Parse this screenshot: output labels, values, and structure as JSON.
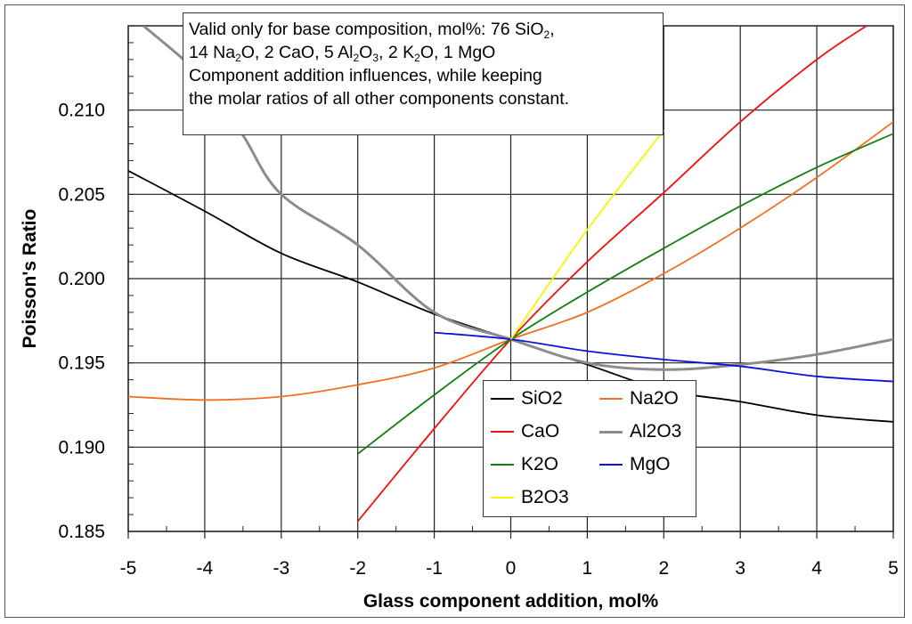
{
  "chart_data": {
    "type": "line",
    "xlabel": "Glass component addition, mol%",
    "ylabel": "Poisson's Ratio",
    "xlim": [
      -5,
      5
    ],
    "ylim": [
      0.185,
      0.215
    ],
    "xticks": [
      "-5",
      "-4",
      "-3",
      "-2",
      "-1",
      "0",
      "1",
      "2",
      "3",
      "4",
      "5"
    ],
    "yticks": [
      "0.185",
      "0.190",
      "0.195",
      "0.200",
      "0.205",
      "0.210"
    ],
    "grid": true,
    "legend_position": "bottom-center",
    "annotation": [
      [
        {
          "t": "Valid only for base composition, mol%: 76 SiO"
        },
        {
          "sub": "2"
        },
        {
          "t": ","
        }
      ],
      [
        {
          "t": "14 Na"
        },
        {
          "sub": "2"
        },
        {
          "t": "O, 2 CaO, 5 Al"
        },
        {
          "sub": "2"
        },
        {
          "t": "O"
        },
        {
          "sub": "3"
        },
        {
          "t": ", 2 K"
        },
        {
          "sub": "2"
        },
        {
          "t": "O, 1 MgO"
        }
      ],
      [
        {
          "t": "Component addition influences, while keeping"
        }
      ],
      [
        {
          "t": "the molar ratios of all other components constant."
        }
      ]
    ],
    "series": [
      {
        "name": "SiO2",
        "color": "#000000",
        "x": [
          -5,
          -4,
          -3,
          -2,
          -1,
          0,
          1,
          2,
          3,
          4,
          5
        ],
        "y": [
          0.2064,
          0.204,
          0.2015,
          0.1998,
          0.1979,
          0.1964,
          0.1949,
          0.1934,
          0.1927,
          0.1919,
          0.1915
        ]
      },
      {
        "name": "Na2O",
        "color": "#f07020",
        "x": [
          -5,
          -4,
          -3,
          -2,
          -1,
          0,
          1,
          2,
          3,
          4,
          5
        ],
        "y": [
          0.193,
          0.1928,
          0.193,
          0.1937,
          0.1947,
          0.1964,
          0.198,
          0.2003,
          0.203,
          0.206,
          0.2093
        ]
      },
      {
        "name": "CaO",
        "color": "#ee1111",
        "x": [
          -2,
          -1,
          0,
          1,
          2,
          3,
          4,
          4.65
        ],
        "y": [
          0.1856,
          0.1911,
          0.1964,
          0.201,
          0.2051,
          0.2093,
          0.213,
          0.215
        ]
      },
      {
        "name": "Al2O3",
        "color": "#8c8c8c",
        "x": [
          -4.8,
          -4,
          -3.5,
          -3,
          -2,
          -1,
          0,
          1,
          2,
          3,
          4,
          5
        ],
        "y": [
          0.215,
          0.2118,
          0.2085,
          0.205,
          0.202,
          0.198,
          0.1964,
          0.195,
          0.1946,
          0.1949,
          0.1955,
          0.1964
        ]
      },
      {
        "name": "K2O",
        "color": "#108010",
        "x": [
          -2,
          -1,
          0,
          1,
          2,
          3,
          4,
          5
        ],
        "y": [
          0.1896,
          0.1931,
          0.1964,
          0.1992,
          0.2018,
          0.2043,
          0.2066,
          0.2086
        ]
      },
      {
        "name": "MgO",
        "color": "#1010e0",
        "x": [
          -1,
          0,
          1,
          2,
          3,
          4,
          5
        ],
        "y": [
          0.1968,
          0.1964,
          0.1957,
          0.1952,
          0.1948,
          0.1942,
          0.1939
        ]
      },
      {
        "name": "B2O3",
        "color": "#f5f500",
        "x": [
          0,
          1,
          2
        ],
        "y": [
          0.1964,
          0.2029,
          0.2088
        ]
      }
    ]
  }
}
